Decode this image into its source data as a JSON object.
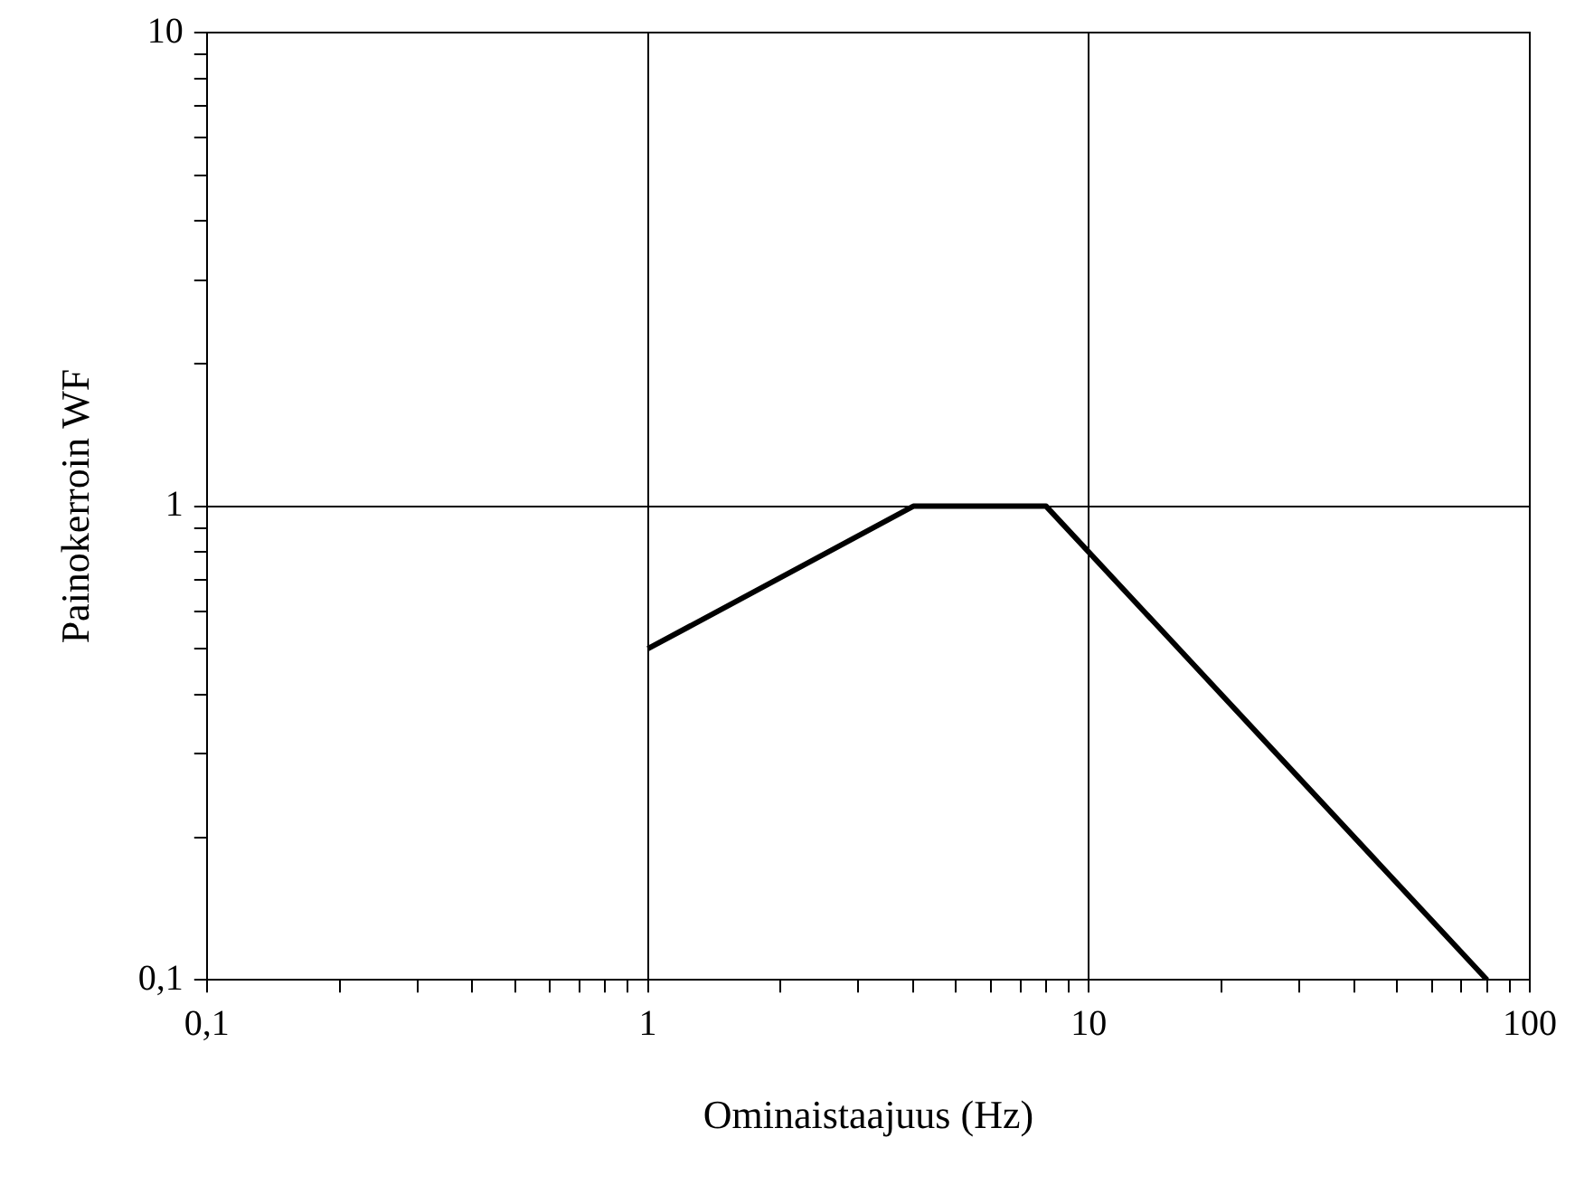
{
  "chart_data": {
    "type": "line",
    "xlabel": "Ominaistaajuus (Hz)",
    "ylabel": "Painokerroin WF",
    "x": [
      1,
      4,
      8,
      80
    ],
    "series": [
      {
        "color": "#000000",
        "values": [
          0.5,
          1,
          1,
          0.1
        ]
      }
    ],
    "log": "xy",
    "xlim": [
      0.1,
      100
    ],
    "ylim": [
      0.1,
      10
    ],
    "xticks": [
      {
        "value": 0.1,
        "label": "0,1"
      },
      {
        "value": 0.2,
        "label": null
      },
      {
        "value": 0.3,
        "label": null
      },
      {
        "value": 0.4,
        "label": null
      },
      {
        "value": 0.5,
        "label": null
      },
      {
        "value": 0.6,
        "label": null
      },
      {
        "value": 0.7,
        "label": null
      },
      {
        "value": 0.8,
        "label": null
      },
      {
        "value": 0.9,
        "label": null
      },
      1,
      {
        "value": 2,
        "label": null
      },
      {
        "value": 3,
        "label": null
      },
      {
        "value": 4,
        "label": null
      },
      {
        "value": 5,
        "label": null
      },
      {
        "value": 6,
        "label": null
      },
      {
        "value": 7,
        "label": null
      },
      {
        "value": 8,
        "label": null
      },
      {
        "value": 9,
        "label": null
      },
      10,
      {
        "value": 20,
        "label": null
      },
      {
        "value": 30,
        "label": null
      },
      {
        "value": 40,
        "label": null
      },
      {
        "value": 50,
        "label": null
      },
      {
        "value": 60,
        "label": null
      },
      {
        "value": 70,
        "label": null
      },
      {
        "value": 80,
        "label": null
      },
      {
        "value": 90,
        "label": null
      },
      100
    ],
    "yticks": [
      {
        "value": 0.1,
        "label": "0,1"
      },
      {
        "value": 0.2,
        "label": null
      },
      {
        "value": 0.3,
        "label": null
      },
      {
        "value": 0.4,
        "label": null
      },
      {
        "value": 0.5,
        "label": null
      },
      {
        "value": 0.6,
        "label": null
      },
      {
        "value": 0.7,
        "label": null
      },
      {
        "value": 0.8,
        "label": null
      },
      {
        "value": 0.9,
        "label": null
      },
      1,
      {
        "value": 2,
        "label": null
      },
      {
        "value": 3,
        "label": null
      },
      {
        "value": 4,
        "label": null
      },
      {
        "value": 5,
        "label": null
      },
      {
        "value": 6,
        "label": null
      },
      {
        "value": 7,
        "label": null
      },
      {
        "value": 8,
        "label": null
      },
      {
        "value": 9,
        "label": null
      },
      10
    ],
    "grid": true,
    "legend": false,
    "marker": "none",
    "line_style": "solid"
  }
}
